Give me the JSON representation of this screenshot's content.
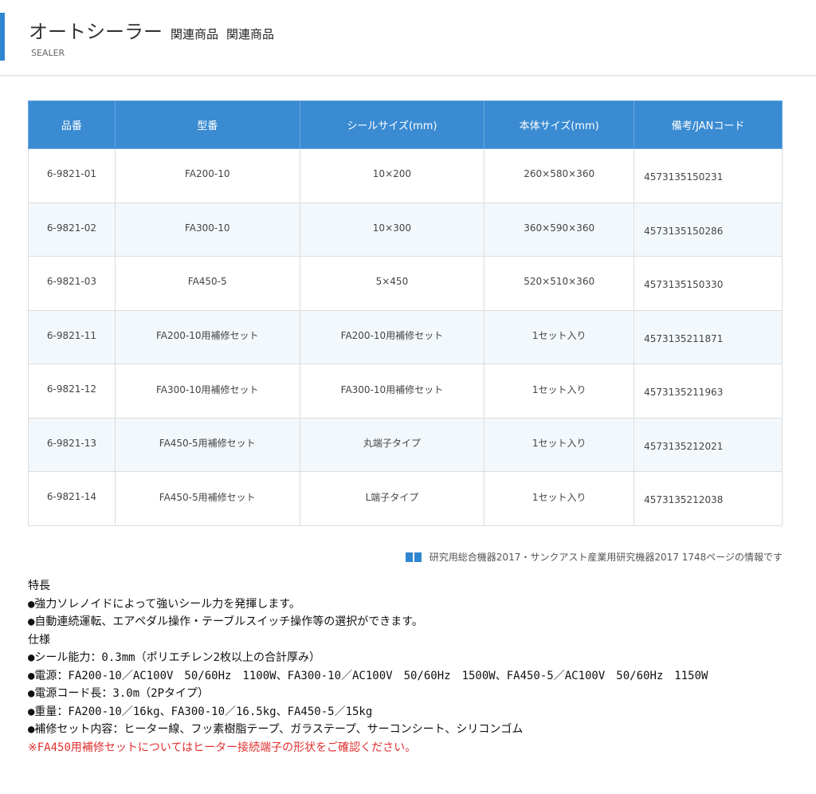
{
  "header": {
    "title": "オートシーラー",
    "sub1": "関連商品",
    "sub2": "関連商品",
    "english": "SEALER",
    "accent": "#2f86d0"
  },
  "table": {
    "columns": [
      "品番",
      "型番",
      "シールサイズ(mm)",
      "本体サイズ(mm)",
      "備考/JANコード"
    ],
    "rows": [
      [
        "6-9821-01",
        "FA200-10",
        "10×200",
        "260×580×360",
        "4573135150231"
      ],
      [
        "6-9821-02",
        "FA300-10",
        "10×300",
        "360×590×360",
        "4573135150286"
      ],
      [
        "6-9821-03",
        "FA450-5",
        "5×450",
        "520×510×360",
        "4573135150330"
      ],
      [
        "6-9821-11",
        "FA200-10用補修セット",
        "FA200-10用補修セット",
        "1セット入り",
        "4573135211871"
      ],
      [
        "6-9821-12",
        "FA300-10用補修セット",
        "FA300-10用補修セット",
        "1セット入り",
        "4573135211963"
      ],
      [
        "6-9821-13",
        "FA450-5用補修セット",
        "丸端子タイプ",
        "1セット入り",
        "4573135212021"
      ],
      [
        "6-9821-14",
        "FA450-5用補修セット",
        "L端子タイプ",
        "1セット入り",
        "4573135212038"
      ]
    ]
  },
  "source": {
    "icon": "book-icon",
    "text": "研究用総合機器2017・サンクアスト産業用研究機器2017 1748ページの情報です"
  },
  "features": [
    "特長",
    "●強力ソレノイドによって強いシール力を発揮します。",
    "●自動連続運転、エアペダル操作・テーブルスイッチ操作等の選択ができます。",
    "仕様",
    "●シール能力：0.3mm（ポリエチレン2枚以上の合計厚み）",
    "●電源：FA200-10／AC100V　50/60Hz　1100W、FA300-10／AC100V　50/60Hz　1500W、FA450-5／AC100V　50/60Hz　1150W",
    "●電源コード長：3.0m（2Pタイプ）",
    "●重量：FA200-10／16kg、FA300-10／16.5kg、FA450-5／15kg",
    "●補修セット内容：ヒーター線、フッ素樹脂テープ、ガラステープ、サーコンシート、シリコンゴム"
  ],
  "note": "※FA450用補修セットについてはヒーター接続端子の形状をご確認ください。"
}
